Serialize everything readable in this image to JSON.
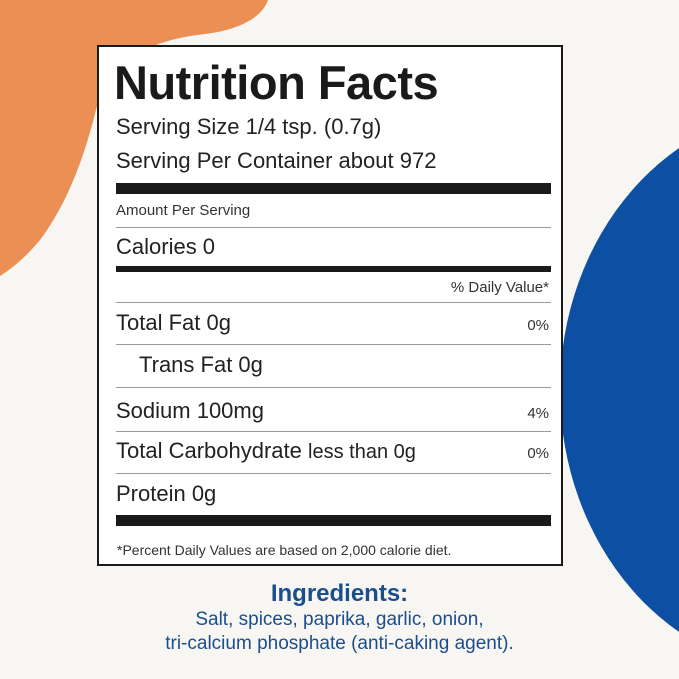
{
  "colors": {
    "accent_orange": "#ec8f55",
    "accent_blue": "#0d4fa3",
    "ingredients_text": "#1c4e8b"
  },
  "label": {
    "title": "Nutrition Facts",
    "serving_size": "Serving Size 1/4 tsp. (0.7g)",
    "servings_per_container": "Serving Per Container about 972",
    "amount_per_serving": "Amount Per Serving",
    "calories": "Calories 0",
    "daily_value_header": "% Daily Value*",
    "nutrients": [
      {
        "label": "Total Fat 0g",
        "qualifier": "",
        "daily_value": "0%"
      },
      {
        "label": "Trans Fat 0g",
        "qualifier": "",
        "daily_value": ""
      },
      {
        "label": "Sodium 100mg",
        "qualifier": "",
        "daily_value": "4%"
      },
      {
        "label": "Total Carbohydrate",
        "qualifier": "less than 0g",
        "daily_value": "0%"
      },
      {
        "label": "Protein 0g",
        "qualifier": "",
        "daily_value": ""
      }
    ],
    "footnote": "*Percent Daily Values are based on 2,000 calorie diet."
  },
  "ingredients": {
    "heading": "Ingredients:",
    "line1": "Salt, spices, paprika, garlic, onion,",
    "line2": "tri-calcium phosphate (anti-caking agent)."
  }
}
